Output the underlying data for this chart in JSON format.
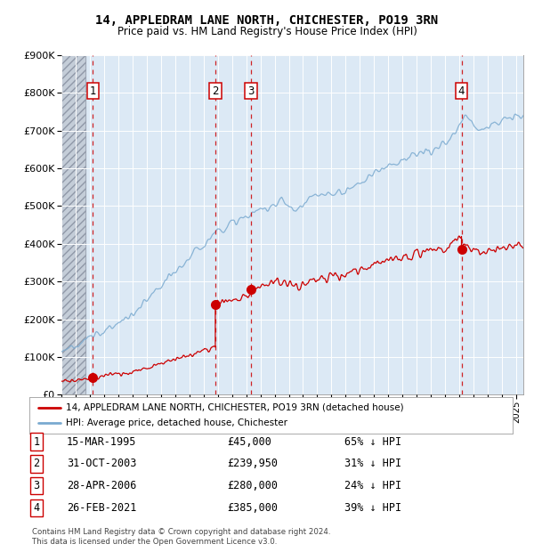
{
  "title1": "14, APPLEDRAM LANE NORTH, CHICHESTER, PO19 3RN",
  "title2": "Price paid vs. HM Land Registry's House Price Index (HPI)",
  "legend_label_red": "14, APPLEDRAM LANE NORTH, CHICHESTER, PO19 3RN (detached house)",
  "legend_label_blue": "HPI: Average price, detached house, Chichester",
  "transactions": [
    {
      "num": 1,
      "date": "15-MAR-1995",
      "price": 45000,
      "hpi_pct": "65% ↓ HPI",
      "x_year": 1995.21
    },
    {
      "num": 2,
      "date": "31-OCT-2003",
      "price": 239950,
      "hpi_pct": "31% ↓ HPI",
      "x_year": 2003.83
    },
    {
      "num": 3,
      "date": "28-APR-2006",
      "price": 280000,
      "hpi_pct": "24% ↓ HPI",
      "x_year": 2006.33
    },
    {
      "num": 4,
      "date": "26-FEB-2021",
      "price": 385000,
      "hpi_pct": "39% ↓ HPI",
      "x_year": 2021.15
    }
  ],
  "ylim": [
    0,
    900000
  ],
  "xlim": [
    1993.0,
    2025.5
  ],
  "hatch_end_year": 1994.7,
  "footer": "Contains HM Land Registry data © Crown copyright and database right 2024.\nThis data is licensed under the Open Government Licence v3.0.",
  "bg_color": "#dce9f5",
  "hatch_color": "#c4cdd8",
  "red_color": "#cc0000",
  "blue_color": "#7aaad0",
  "grid_color": "#ffffff"
}
